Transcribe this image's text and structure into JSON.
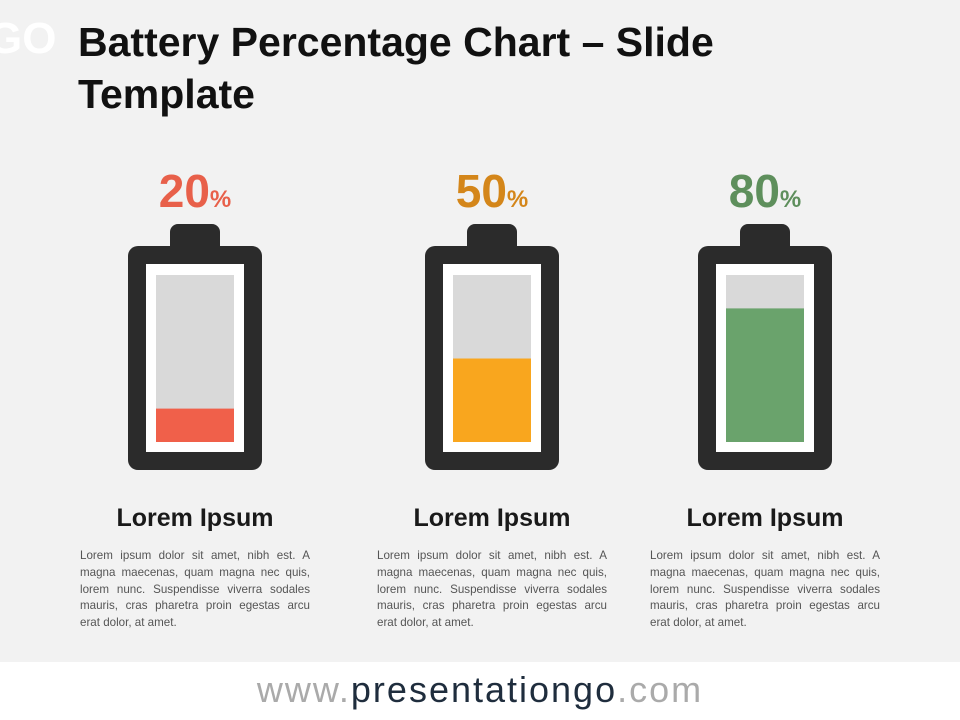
{
  "logo": "GO",
  "chart_data": {
    "type": "battery",
    "title": "Battery Percentage Chart – Slide Template",
    "categories": [
      "Lorem Ipsum",
      "Lorem Ipsum",
      "Lorem Ipsum"
    ],
    "descriptions": [
      "Lorem ipsum dolor sit amet, nibh est. A magna maecenas, quam magna nec quis, lorem nunc. Suspendisse viverra sodales mauris, cras pharetra proin egestas arcu erat dolor, at amet.",
      "Lorem ipsum dolor sit amet, nibh est. A magna maecenas, quam magna nec quis, lorem nunc. Suspendisse viverra sodales mauris, cras pharetra proin egestas arcu erat dolor, at amet.",
      "Lorem ipsum dolor sit amet, nibh est. A magna maecenas, quam magna nec quis, lorem nunc. Suspendisse viverra sodales mauris, cras pharetra proin egestas arcu erat dolor, at amet."
    ],
    "values": [
      20,
      50,
      80
    ],
    "value_labels": [
      "20%",
      "50%",
      "80%"
    ],
    "colors": [
      "#f0604a",
      "#f9a61e",
      "#6aa36c"
    ],
    "label_colors": [
      "#e8604a",
      "#d4861a",
      "#5e8f5c"
    ],
    "ylim": [
      0,
      100
    ]
  },
  "footer": {
    "prefix": "www.",
    "name": "presentationgo",
    "suffix": ".com"
  }
}
